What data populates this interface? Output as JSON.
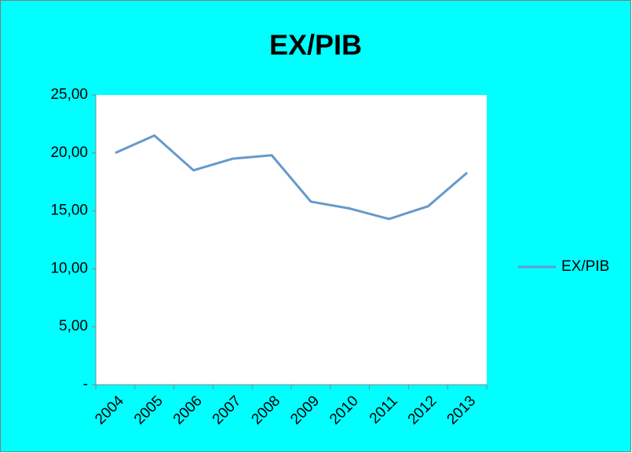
{
  "chart_data": {
    "type": "line",
    "title": "EX/PIB",
    "categories": [
      "2004",
      "2005",
      "2006",
      "2007",
      "2008",
      "2009",
      "2010",
      "2011",
      "2012",
      "2013"
    ],
    "series": [
      {
        "name": "EX/PIB",
        "color": "#6699cc",
        "values": [
          20.0,
          21.5,
          18.5,
          19.5,
          19.8,
          15.8,
          15.2,
          14.3,
          15.4,
          18.3
        ]
      }
    ],
    "ylim": [
      0,
      25
    ],
    "yticks": [
      {
        "value": 0,
        "label": "-"
      },
      {
        "value": 5,
        "label": "5,00"
      },
      {
        "value": 10,
        "label": "10,00"
      },
      {
        "value": 15,
        "label": "15,00"
      },
      {
        "value": 20,
        "label": "20,00"
      },
      {
        "value": 25,
        "label": "25,00"
      }
    ],
    "grid": false,
    "legend": "right"
  }
}
